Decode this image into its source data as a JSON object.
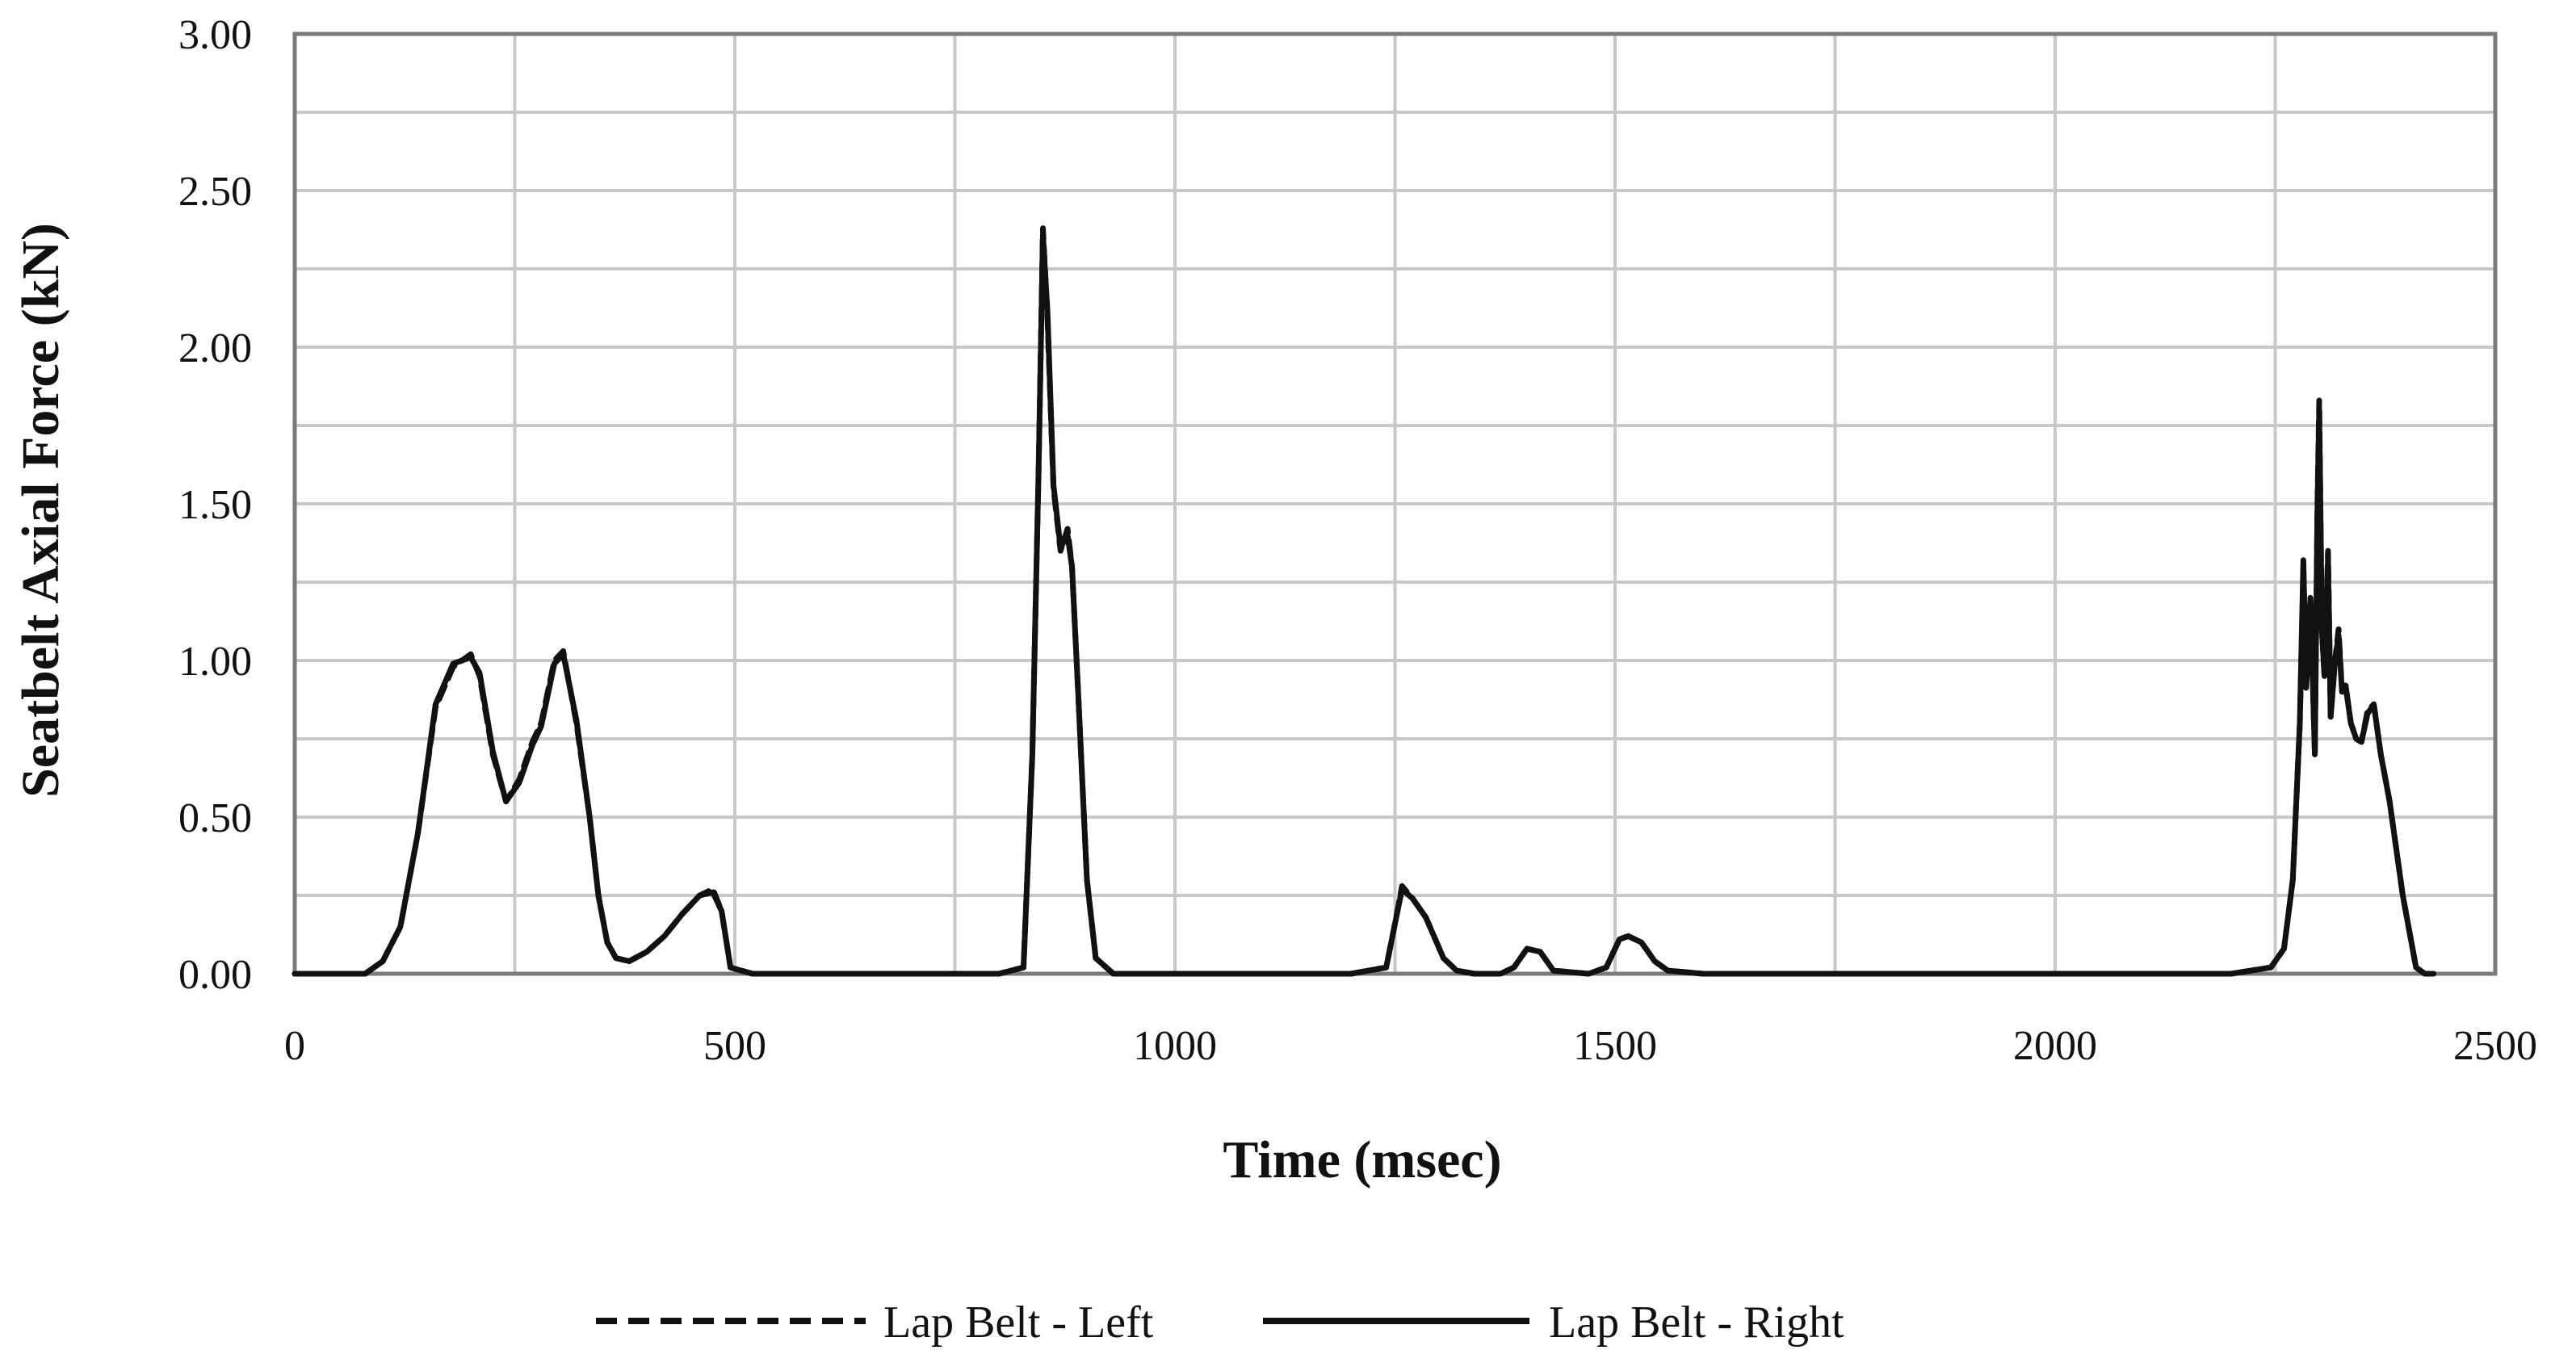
{
  "chart_data": {
    "type": "line",
    "title": "",
    "xlabel": "Time (msec)",
    "ylabel": "Seatbelt Axial Force (kN)",
    "xlim": [
      0,
      2500
    ],
    "ylim": [
      0,
      3.0
    ],
    "xticks": [
      "0",
      "500",
      "1000",
      "1500",
      "2000",
      "2500"
    ],
    "yticks": [
      "0.00",
      "0.50",
      "1.00",
      "1.50",
      "2.00",
      "2.50",
      "3.00"
    ],
    "grid": true,
    "legend_position": "bottom",
    "series": [
      {
        "name": "Lap Belt - Left",
        "style": "dashed",
        "color": "#111111",
        "x": [
          0,
          80,
          100,
          120,
          140,
          160,
          180,
          200,
          210,
          225,
          240,
          255,
          270,
          280,
          295,
          305,
          320,
          335,
          345,
          355,
          365,
          380,
          400,
          420,
          440,
          460,
          475,
          485,
          495,
          520,
          700,
          800,
          828,
          838,
          845,
          850,
          855,
          862,
          870,
          878,
          883,
          890,
          900,
          910,
          930,
          1200,
          1240,
          1250,
          1258,
          1270,
          1285,
          1305,
          1320,
          1340,
          1370,
          1385,
          1400,
          1415,
          1430,
          1470,
          1490,
          1505,
          1515,
          1530,
          1545,
          1560,
          1600,
          1800,
          2000,
          2200,
          2245,
          2260,
          2270,
          2278,
          2282,
          2285,
          2290,
          2295,
          2298,
          2300,
          2303,
          2306,
          2310,
          2313,
          2318,
          2322,
          2326,
          2330,
          2336,
          2342,
          2348,
          2355,
          2362,
          2370,
          2380,
          2395,
          2410,
          2420,
          2430
        ],
        "values": [
          0.0,
          0.0,
          0.04,
          0.15,
          0.45,
          0.85,
          0.98,
          1.02,
          0.95,
          0.7,
          0.55,
          0.62,
          0.74,
          0.8,
          1.0,
          1.03,
          0.8,
          0.5,
          0.25,
          0.1,
          0.05,
          0.04,
          0.07,
          0.12,
          0.19,
          0.25,
          0.27,
          0.2,
          0.02,
          0.0,
          0.0,
          0.0,
          0.02,
          0.7,
          1.6,
          2.38,
          2.1,
          1.55,
          1.35,
          1.42,
          1.3,
          0.9,
          0.3,
          0.05,
          0.0,
          0.0,
          0.02,
          0.16,
          0.28,
          0.24,
          0.18,
          0.05,
          0.01,
          0.0,
          0.0,
          0.02,
          0.08,
          0.07,
          0.01,
          0.0,
          0.02,
          0.11,
          0.12,
          0.1,
          0.04,
          0.01,
          0.0,
          0.0,
          0.0,
          0.0,
          0.02,
          0.08,
          0.3,
          0.8,
          1.3,
          0.9,
          1.2,
          0.7,
          1.5,
          1.83,
          1.1,
          0.95,
          1.35,
          0.82,
          1.0,
          1.1,
          0.9,
          0.92,
          0.8,
          0.75,
          0.74,
          0.84,
          0.86,
          0.7,
          0.55,
          0.25,
          0.02,
          0.0,
          0.0
        ]
      },
      {
        "name": "Lap Belt - Right",
        "style": "solid",
        "color": "#111111",
        "x": [
          0,
          80,
          100,
          120,
          140,
          160,
          180,
          200,
          210,
          225,
          240,
          255,
          270,
          280,
          295,
          305,
          320,
          335,
          345,
          355,
          365,
          380,
          400,
          420,
          440,
          460,
          475,
          485,
          495,
          520,
          700,
          800,
          828,
          838,
          845,
          850,
          855,
          862,
          870,
          878,
          883,
          890,
          900,
          910,
          930,
          1200,
          1240,
          1250,
          1258,
          1270,
          1285,
          1305,
          1320,
          1340,
          1370,
          1385,
          1400,
          1415,
          1430,
          1470,
          1490,
          1505,
          1515,
          1530,
          1545,
          1560,
          1600,
          1800,
          2000,
          2200,
          2245,
          2260,
          2270,
          2278,
          2282,
          2285,
          2290,
          2295,
          2298,
          2300,
          2303,
          2306,
          2310,
          2313,
          2318,
          2322,
          2326,
          2330,
          2336,
          2342,
          2348,
          2355,
          2362,
          2370,
          2380,
          2395,
          2410,
          2420,
          2430
        ],
        "values": [
          0.0,
          0.0,
          0.04,
          0.15,
          0.45,
          0.86,
          0.99,
          1.01,
          0.96,
          0.71,
          0.55,
          0.61,
          0.73,
          0.79,
          0.99,
          1.02,
          0.81,
          0.5,
          0.25,
          0.1,
          0.05,
          0.04,
          0.07,
          0.12,
          0.19,
          0.25,
          0.26,
          0.2,
          0.02,
          0.0,
          0.0,
          0.0,
          0.02,
          0.7,
          1.6,
          2.36,
          2.12,
          1.56,
          1.36,
          1.4,
          1.3,
          0.9,
          0.3,
          0.05,
          0.0,
          0.0,
          0.02,
          0.16,
          0.27,
          0.24,
          0.18,
          0.05,
          0.01,
          0.0,
          0.0,
          0.02,
          0.08,
          0.07,
          0.01,
          0.0,
          0.02,
          0.11,
          0.12,
          0.1,
          0.04,
          0.01,
          0.0,
          0.0,
          0.0,
          0.0,
          0.02,
          0.08,
          0.3,
          0.8,
          1.32,
          0.92,
          1.2,
          0.7,
          1.48,
          1.8,
          1.1,
          0.95,
          1.33,
          0.82,
          1.0,
          1.08,
          0.9,
          0.92,
          0.8,
          0.75,
          0.74,
          0.83,
          0.86,
          0.7,
          0.55,
          0.25,
          0.02,
          0.0,
          0.0
        ]
      }
    ]
  }
}
